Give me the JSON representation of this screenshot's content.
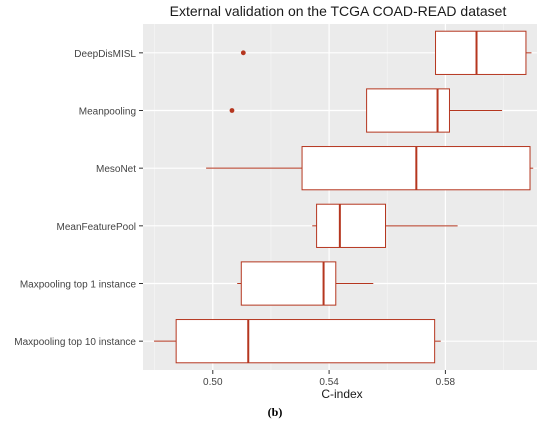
{
  "caption": "(b)",
  "chart_data": {
    "type": "boxplot",
    "orientation": "horizontal",
    "title": "External validation on the TCGA COAD-READ dataset",
    "xlabel": "C-index",
    "ylabel": "",
    "xlim": [
      0.476,
      0.6115
    ],
    "x_ticks": [
      0.5,
      0.54,
      0.58
    ],
    "x_tick_labels": [
      "0.50",
      "0.54",
      "0.58"
    ],
    "grid": true,
    "background": "#ebebeb",
    "box_color": "#b5361f",
    "categories": [
      "DeepDisMISL",
      "Meanpooling",
      "MesoNet",
      "MeanFeaturePool",
      "Maxpooling top 1 instance",
      "Maxpooling top 10 instance"
    ],
    "boxes": [
      {
        "whisker_low": 0.5766,
        "q1": 0.5766,
        "median": 0.5907,
        "q3": 0.6077,
        "whisker_high": 0.6096,
        "outliers": [
          0.5105
        ]
      },
      {
        "whisker_low": 0.5529,
        "q1": 0.5529,
        "median": 0.5773,
        "q3": 0.5814,
        "whisker_high": 0.5995,
        "outliers": [
          0.5066
        ]
      },
      {
        "whisker_low": 0.4977,
        "q1": 0.5307,
        "median": 0.57,
        "q3": 0.6091,
        "whisker_high": 0.6102,
        "outliers": []
      },
      {
        "whisker_low": 0.5342,
        "q1": 0.5357,
        "median": 0.5437,
        "q3": 0.5594,
        "whisker_high": 0.5842,
        "outliers": []
      },
      {
        "whisker_low": 0.5084,
        "q1": 0.5098,
        "median": 0.5381,
        "q3": 0.5423,
        "whisker_high": 0.5552,
        "outliers": []
      },
      {
        "whisker_low": 0.4798,
        "q1": 0.4874,
        "median": 0.5122,
        "q3": 0.5763,
        "whisker_high": 0.5784,
        "outliers": []
      }
    ]
  }
}
